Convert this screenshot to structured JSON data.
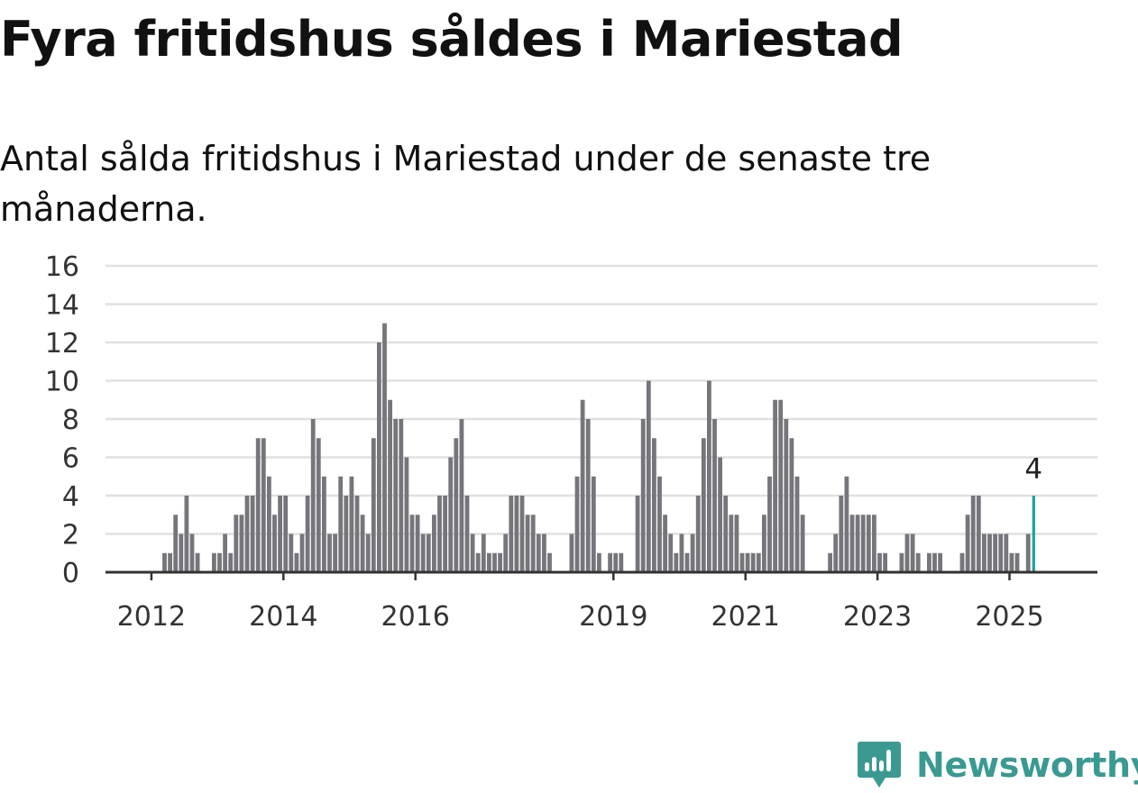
{
  "title": "Fyra fritidshus såldes i Mariestad",
  "subtitle": "Antal sålda fritidshus i Mariestad under de senaste tre månaderna.",
  "brand": {
    "name": "Newsworthy",
    "icon": "newsworthy-logo-icon",
    "color": "#3a9a92"
  },
  "colors": {
    "bars": "#76757b",
    "highlight": "#1aa39a",
    "grid": "#e0e0e0",
    "axis": "#333333"
  },
  "chart_data": {
    "type": "bar",
    "ylim": [
      0,
      16
    ],
    "yticks": [
      0,
      2,
      4,
      6,
      8,
      10,
      12,
      14,
      16
    ],
    "xticks": [
      {
        "label": "2012",
        "index": 8
      },
      {
        "label": "2014",
        "index": 32
      },
      {
        "label": "2016",
        "index": 56
      },
      {
        "label": "2019",
        "index": 92
      },
      {
        "label": "2021",
        "index": 116
      },
      {
        "label": "2023",
        "index": 140
      },
      {
        "label": "2025",
        "index": 164
      }
    ],
    "grid": true,
    "highlight_label": "4",
    "series": [
      {
        "values": [
          0,
          0,
          0,
          0,
          0,
          0,
          0,
          0,
          0,
          0,
          1,
          1,
          3,
          2,
          4,
          2,
          1,
          0,
          0,
          1,
          1,
          2,
          1,
          3,
          3,
          4,
          4,
          7,
          7,
          5,
          3,
          4,
          4,
          2,
          1,
          2,
          4,
          8,
          7,
          5,
          2,
          2,
          5,
          4,
          5,
          4,
          3,
          2,
          7,
          12,
          13,
          9,
          8,
          8,
          6,
          3,
          3,
          2,
          2,
          3,
          4,
          4,
          6,
          7,
          8,
          4,
          2,
          1,
          2,
          1,
          1,
          1,
          2,
          4,
          4,
          4,
          3,
          3,
          2,
          2,
          1,
          0,
          0,
          0,
          2,
          5,
          9,
          8,
          5,
          1,
          0,
          1,
          1,
          1,
          0,
          0,
          4,
          8,
          10,
          7,
          5,
          3,
          2,
          1,
          2,
          1,
          2,
          4,
          7,
          10,
          8,
          6,
          4,
          3,
          3,
          1,
          1,
          1,
          1,
          3,
          5,
          9,
          9,
          8,
          7,
          5,
          3,
          0,
          0,
          0,
          0,
          1,
          2,
          4,
          5,
          3,
          3,
          3,
          3,
          3,
          1,
          1,
          0,
          0,
          1,
          2,
          2,
          1,
          0,
          1,
          1,
          1,
          0,
          0,
          0,
          1,
          3,
          4,
          4,
          2,
          2,
          2,
          2,
          2,
          1,
          1,
          0,
          2,
          4
        ]
      }
    ]
  }
}
